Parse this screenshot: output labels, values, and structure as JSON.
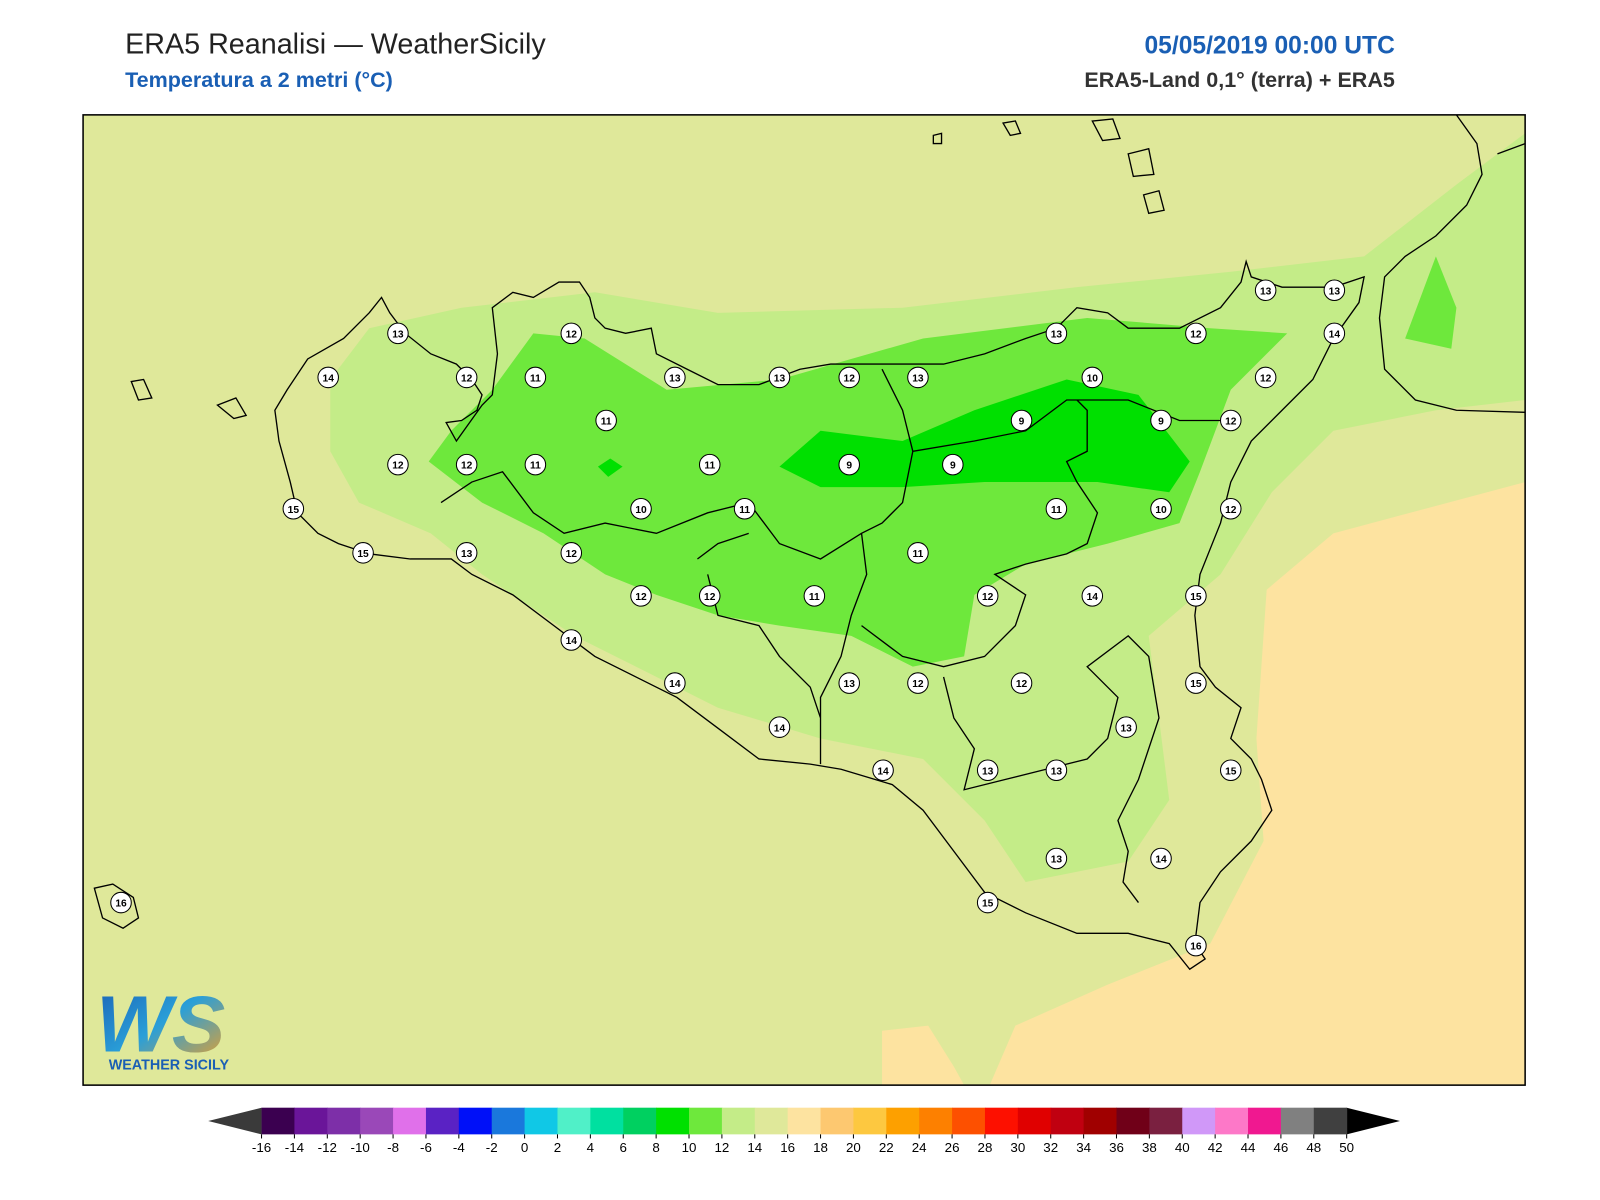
{
  "header": {
    "title": "ERA5 Reanalisi — WeatherSicily",
    "subtitle": "Temperatura a 2 metri (°C)",
    "datetime": "05/05/2019 00:00 UTC",
    "source": "ERA5-Land 0,1° (terra) + ERA5"
  },
  "map": {
    "station_values": [
      13,
      12,
      13,
      12,
      13,
      13,
      14,
      14,
      12,
      11,
      13,
      13,
      12,
      13,
      10,
      12,
      11,
      9,
      9,
      12,
      12,
      12,
      11,
      11,
      9,
      9,
      15,
      10,
      11,
      11,
      10,
      12,
      15,
      13,
      12,
      11,
      12,
      12,
      11,
      12,
      14,
      15,
      14,
      14,
      13,
      12,
      12,
      15,
      14,
      13,
      14,
      13,
      13,
      15,
      13,
      14,
      16,
      15,
      16
    ]
  },
  "colorbar": {
    "ticks": [
      -16,
      -14,
      -12,
      -10,
      -8,
      -6,
      -4,
      -2,
      0,
      2,
      4,
      6,
      8,
      10,
      12,
      14,
      16,
      18,
      20,
      22,
      24,
      26,
      28,
      30,
      32,
      34,
      36,
      38,
      40,
      42,
      44,
      46,
      48,
      50
    ],
    "colors": [
      "#3b0050",
      "#6a1599",
      "#7d2fa8",
      "#9a48b8",
      "#e070ea",
      "#5a22c4",
      "#0010f8",
      "#1a78dc",
      "#10c8e6",
      "#50f0c8",
      "#00e0a0",
      "#00d060",
      "#00e000",
      "#6ee83c",
      "#c4ec88",
      "#dfe89a",
      "#fde3a0",
      "#fdc870",
      "#fdc840",
      "#fda000",
      "#fd8000",
      "#fd5000",
      "#fd1000",
      "#e00000",
      "#c00010",
      "#a00000",
      "#700018",
      "#7a2040",
      "#d098f8",
      "#fd78c8",
      "#f01890",
      "#808080",
      "#404040"
    ],
    "extend_colors": [
      "#3a3a3a",
      "#000000"
    ]
  },
  "logo": {
    "letters": "WS",
    "text": "WEATHER SICILY"
  }
}
